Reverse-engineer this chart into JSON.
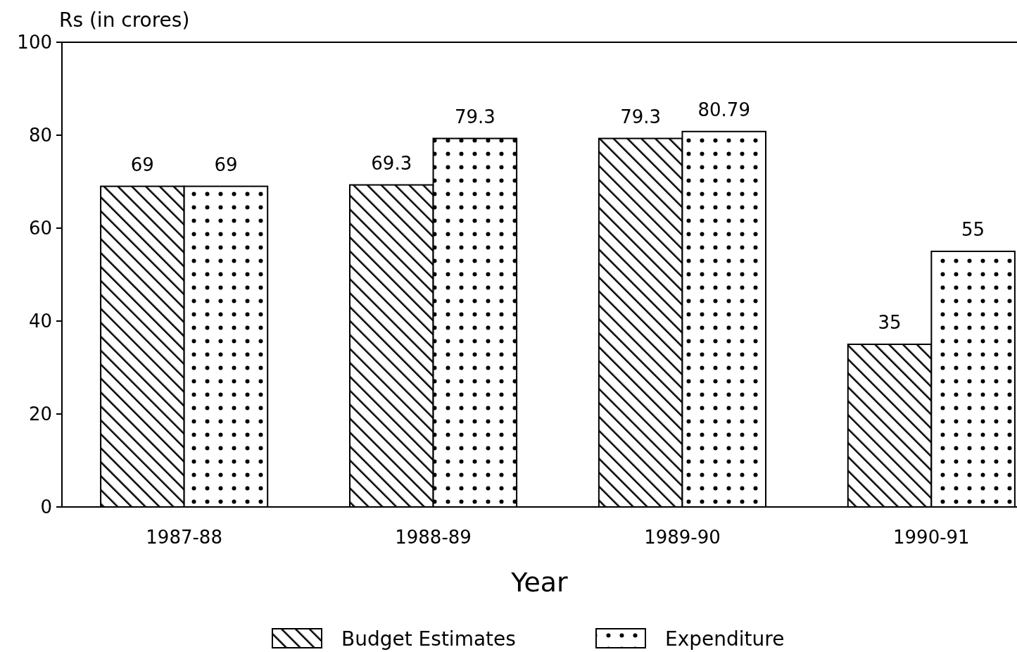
{
  "chart_data": {
    "type": "bar",
    "xlabel": "Year",
    "ylabel": "Rs (in crores)",
    "categories": [
      "1987-88",
      "1988-89",
      "1989-90",
      "1990-91"
    ],
    "series": [
      {
        "name": "Budget Estimates",
        "color": "#000000",
        "values": [
          69,
          69.3,
          79.3,
          35
        ]
      },
      {
        "name": "Expenditure",
        "color": "#000000",
        "values": [
          69,
          79.3,
          80.79,
          55
        ]
      }
    ],
    "ylim": [
      0,
      100
    ],
    "yticks": [
      0,
      20,
      40,
      60,
      80,
      100
    ],
    "data_labels": true,
    "legend": "bottom",
    "grid": false
  }
}
